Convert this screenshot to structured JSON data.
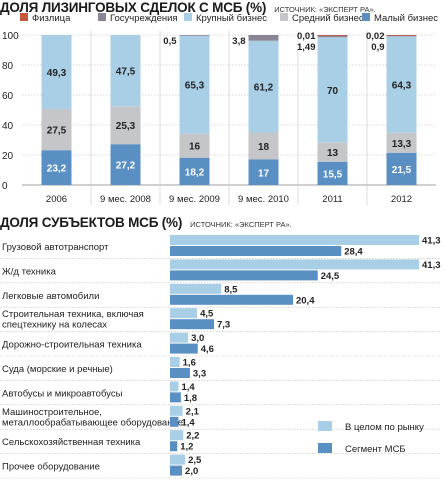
{
  "chart_data": [
    {
      "type": "bar",
      "stacked": true,
      "title": "ДОЛЯ ЛИЗИНГОВЫХ СДЕЛОК С МСБ (%)",
      "source": "ИСТОЧНИК: «ЭКСПЕРТ РА».",
      "categories": [
        "2006",
        "9 мес. 2008",
        "9 мес. 2009",
        "9 мес. 2010",
        "2011",
        "2012"
      ],
      "ylim": [
        0,
        100
      ],
      "yticks": [
        "0",
        "20",
        "40",
        "60",
        "80",
        "100"
      ],
      "legend_position": "top",
      "series": [
        {
          "name": "Физлица",
          "color": "#c8553d",
          "values": [
            0,
            0,
            0,
            0,
            0.01,
            0.02
          ],
          "labels": [
            "",
            "",
            "",
            "",
            "0,01",
            "0,02"
          ]
        },
        {
          "name": "Госучреждения",
          "color": "#8a8494",
          "values": [
            0,
            0,
            0.5,
            3.8,
            1.49,
            0.9
          ],
          "labels": [
            "",
            "",
            "0,5",
            "3,8",
            "1,49",
            "0,9"
          ]
        },
        {
          "name": "Крупный бизнес",
          "color": "#a9cfe6",
          "values": [
            49.3,
            47.5,
            65.3,
            61.2,
            70,
            64.3
          ],
          "labels": [
            "49,3",
            "47,5",
            "65,3",
            "61,2",
            "70",
            "64,3"
          ]
        },
        {
          "name": "Средний бизнес",
          "color": "#c5c6c9",
          "values": [
            27.5,
            25.3,
            16,
            18,
            13,
            13.3
          ],
          "labels": [
            "27,5",
            "25,3",
            "16",
            "18",
            "13",
            "13,3"
          ]
        },
        {
          "name": "Малый бизнес",
          "color": "#5a8fc4",
          "values": [
            23.2,
            27.2,
            18.2,
            17,
            15.5,
            21.5
          ],
          "labels": [
            "23,2",
            "27,2",
            "18,2",
            "17",
            "15,5",
            "21,5"
          ]
        }
      ]
    },
    {
      "type": "bar",
      "orientation": "horizontal",
      "title": "ДОЛЯ СУБЪЕКТОВ МСБ (%)",
      "source": "ИСТОЧНИК: «ЭКСПЕРТ РА».",
      "legend_position": "bottom-right",
      "categories": [
        "Грузовой автотранспорт",
        "Ж/д техника",
        "Легковые автомобили",
        "Строительная техника, включая спецтехнику на колесах",
        "Дорожно-строительная техника",
        "Суда (морские и речные)",
        "Автобусы и микроавтобусы",
        "Машиностроительное, металлообрабатывающее оборудование",
        "Сельскохозяйственная техника",
        "Прочее оборудование"
      ],
      "series": [
        {
          "name": "В целом по рынку",
          "color": "#a9cfe6",
          "values": [
            41.3,
            41.3,
            8.5,
            4.5,
            3.0,
            1.6,
            1.4,
            2.1,
            2.2,
            2.5
          ],
          "labels": [
            "41,3",
            "41,3",
            "8,5",
            "4,5",
            "3,0",
            "1,6",
            "1,4",
            "2,1",
            "2,2",
            "2,5"
          ]
        },
        {
          "name": "Сегмент МСБ",
          "color": "#5a8fc4",
          "values": [
            28.4,
            24.5,
            20.4,
            7.3,
            4.6,
            3.3,
            1.8,
            1.4,
            1.2,
            2.0
          ],
          "labels": [
            "28,4",
            "24,5",
            "20,4",
            "7,3",
            "4,6",
            "3,3",
            "1,8",
            "1,4",
            "1,2",
            "2,0"
          ]
        }
      ]
    }
  ]
}
